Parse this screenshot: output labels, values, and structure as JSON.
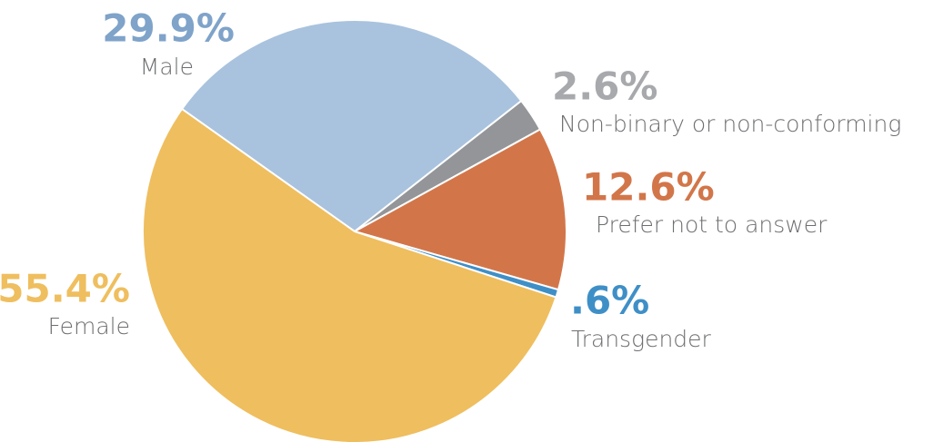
{
  "chart_data": {
    "type": "pie",
    "categories": [
      "Male",
      "Non-binary or non-conforming",
      "Prefer not to answer",
      "Transgender",
      "Female"
    ],
    "values": [
      29.9,
      2.6,
      12.6,
      0.6,
      55.4
    ],
    "value_labels": [
      "29.9%",
      "2.6%",
      "12.6%",
      ".6%",
      "55.4%"
    ],
    "colors": [
      "#a9c3de",
      "#939598",
      "#d2764a",
      "#3f8fc7",
      "#efbe5e"
    ],
    "label_colors": [
      "#7fa3c9",
      "#a7a9ac",
      "#d2764a",
      "#3f8fc7",
      "#efbe5e"
    ]
  }
}
